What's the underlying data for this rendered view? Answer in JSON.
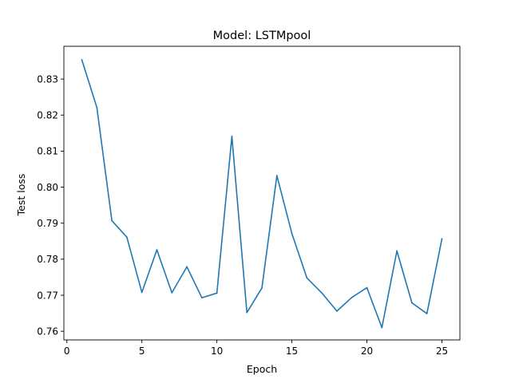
{
  "chart_data": {
    "type": "line",
    "title": "Model: LSTMpool",
    "xlabel": "Epoch",
    "ylabel": "Test loss",
    "xlim": [
      -0.2,
      26.2
    ],
    "ylim": [
      0.7576,
      0.8391
    ],
    "xticks": [
      0,
      5,
      10,
      15,
      20,
      25
    ],
    "yticks": [
      0.76,
      0.77,
      0.78,
      0.79,
      0.8,
      0.81,
      0.82,
      0.83
    ],
    "ytick_labels": [
      "0.76",
      "0.77",
      "0.78",
      "0.79",
      "0.80",
      "0.81",
      "0.82",
      "0.83"
    ],
    "grid": false,
    "color": "#1f77b4",
    "series": [
      {
        "x": [
          1,
          2,
          3,
          4,
          5,
          6,
          7,
          8,
          9,
          10,
          11,
          12,
          13,
          14,
          15,
          16,
          17,
          18,
          19,
          20,
          21,
          22,
          23,
          24,
          25
        ],
        "values": [
          0.8353,
          0.8221,
          0.7907,
          0.7861,
          0.7708,
          0.7826,
          0.7707,
          0.7779,
          0.7693,
          0.7706,
          0.8141,
          0.7652,
          0.772,
          0.8032,
          0.7871,
          0.7748,
          0.7706,
          0.7656,
          0.7694,
          0.7721,
          0.761,
          0.7823,
          0.7679,
          0.7649,
          0.7856
        ]
      }
    ]
  }
}
